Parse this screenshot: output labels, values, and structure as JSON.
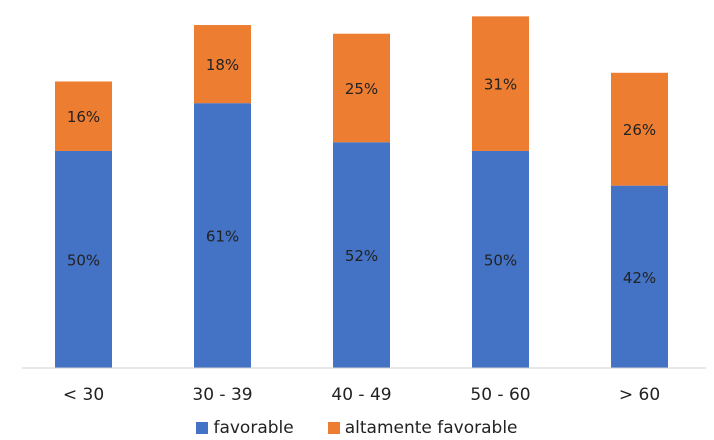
{
  "chart_data": {
    "type": "bar",
    "stacked": true,
    "title": "",
    "xlabel": "",
    "ylabel": "",
    "categories": [
      "< 30",
      "30 - 39",
      "40 - 49",
      "50 - 60",
      "> 60"
    ],
    "series": [
      {
        "name": "favorable",
        "color": "#4472C4",
        "values": [
          50,
          61,
          52,
          50,
          42
        ],
        "labels": [
          "50%",
          "61%",
          "52%",
          "50%",
          "42%"
        ]
      },
      {
        "name": "altamente favorable",
        "color": "#ED7D31",
        "values": [
          16,
          18,
          25,
          31,
          26
        ],
        "labels": [
          "16%",
          "18%",
          "25%",
          "31%",
          "26%"
        ]
      }
    ],
    "value_unit": "%",
    "ylim": [
      0,
      82
    ],
    "grid": false,
    "y_axis_visible": false,
    "legend_position": "bottom"
  }
}
